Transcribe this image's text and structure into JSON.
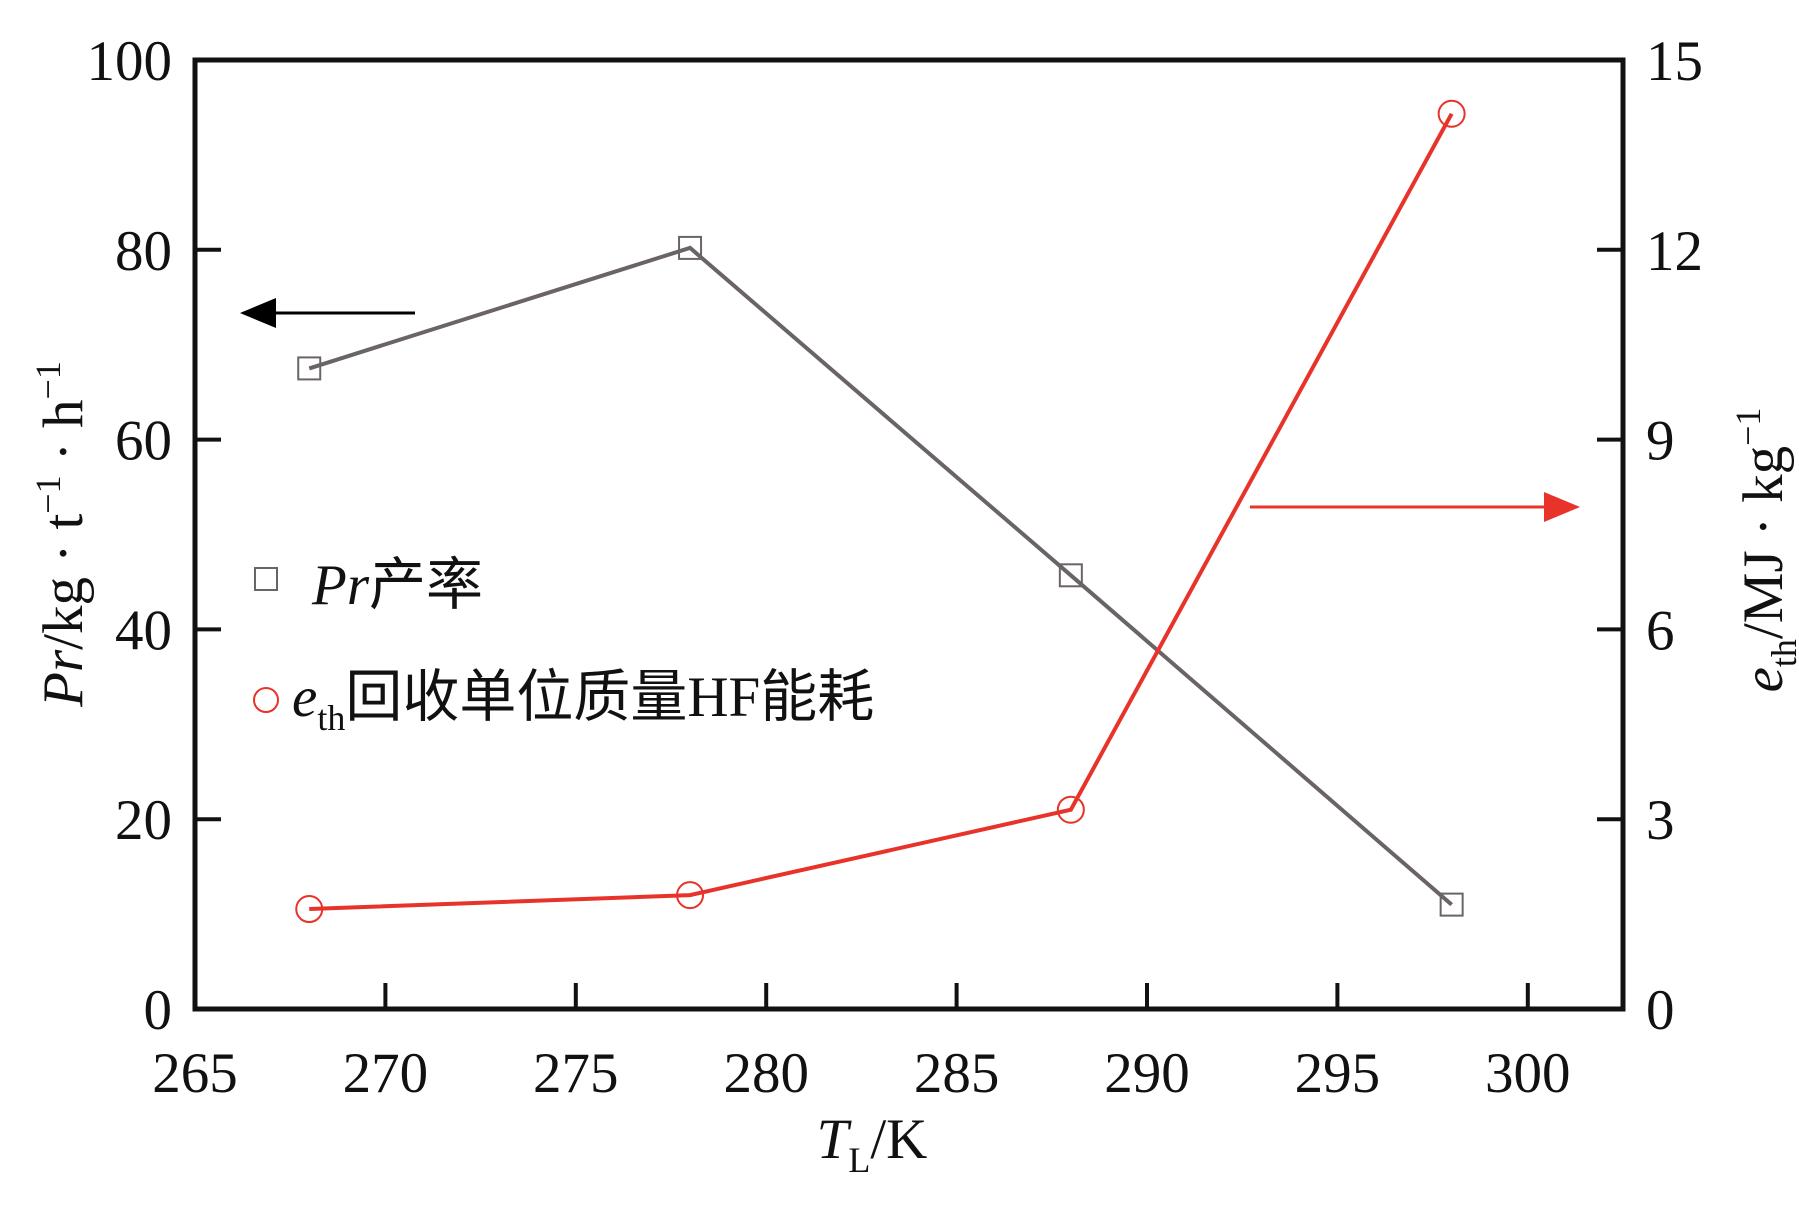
{
  "chart_data": {
    "type": "line",
    "x": [
      268,
      278,
      288,
      298
    ],
    "xlim": [
      265,
      302.5
    ],
    "xticks": [
      265,
      270,
      275,
      280,
      285,
      290,
      295,
      300
    ],
    "ylim": [
      0,
      100
    ],
    "yticks": [
      0,
      20,
      40,
      60,
      80,
      100
    ],
    "y2lim": [
      0,
      15
    ],
    "y2ticks": [
      0,
      3,
      6,
      9,
      12,
      15
    ],
    "xlabel": [
      "T",
      "L",
      "/K"
    ],
    "ylabel": [
      "Pr",
      "/kg · t",
      "−1",
      " · h",
      "−1"
    ],
    "y2label": [
      "e",
      "th",
      "/MJ · kg",
      "−1"
    ],
    "series": [
      {
        "name": [
          "Pr",
          "产率"
        ],
        "color": "#6b6464",
        "marker": "square",
        "values": [
          67.5,
          80.2,
          45.7,
          11.0
        ]
      },
      {
        "name": [
          "e",
          "th",
          "回收单位质量HF能耗"
        ],
        "color": "#e8332a",
        "marker": "circle",
        "axis": "y2",
        "values": [
          1.58,
          1.8,
          3.15,
          14.15
        ]
      }
    ]
  }
}
